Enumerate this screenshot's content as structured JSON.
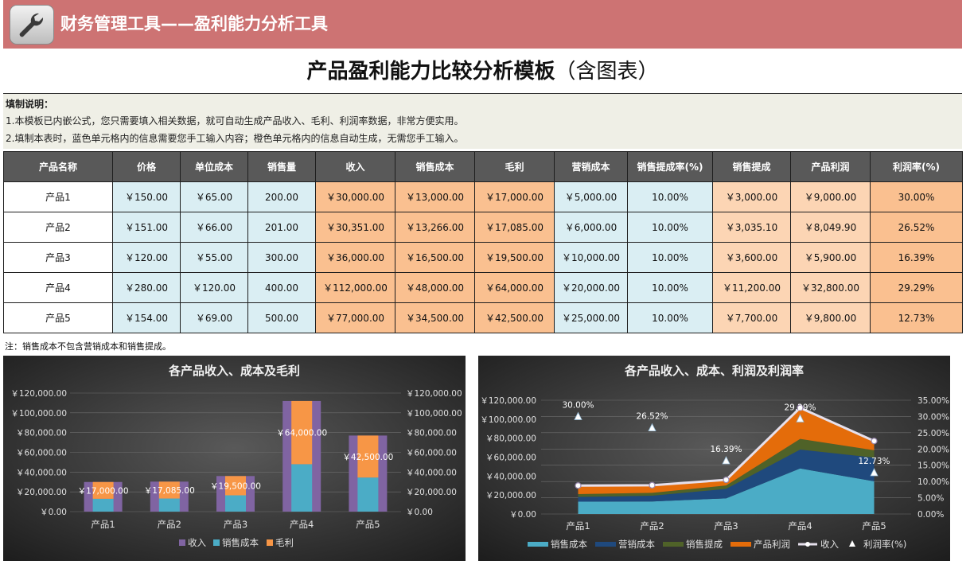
{
  "banner": {
    "title": "财务管理工具——盈利能力分析工具",
    "icon": "wrench-icon"
  },
  "page": {
    "title": "产品盈利能力比较分析模板",
    "subtitle": "（含图表）"
  },
  "notes": {
    "title": "填制说明：",
    "line1": "1.本模板已内嵌公式，您只需要填入相关数据，就可自动生成产品收入、毛利、利润率数据，非常方便实用。",
    "line2": "2.填制本表时，蓝色单元格内的信息需要您手工输入内容；橙色单元格内的信息自动生成，无需您手工输入。"
  },
  "table": {
    "headers": [
      "产品名称",
      "价格",
      "单位成本",
      "销售量",
      "收入",
      "销售成本",
      "毛利",
      "营销成本",
      "销售提成率(%)",
      "销售提成",
      "产品利润",
      "利润率(%)"
    ],
    "rows": [
      [
        "产品1",
        "￥150.00",
        "￥65.00",
        "200.00",
        "￥30,000.00",
        "￥13,000.00",
        "￥17,000.00",
        "￥5,000.00",
        "10.00%",
        "￥3,000.00",
        "￥9,000.00",
        "30.00%"
      ],
      [
        "产品2",
        "￥151.00",
        "￥66.00",
        "201.00",
        "￥30,351.00",
        "￥13,266.00",
        "￥17,085.00",
        "￥6,000.00",
        "10.00%",
        "￥3,035.10",
        "￥8,049.90",
        "26.52%"
      ],
      [
        "产品3",
        "￥120.00",
        "￥55.00",
        "300.00",
        "￥36,000.00",
        "￥16,500.00",
        "￥19,500.00",
        "￥10,000.00",
        "10.00%",
        "￥3,600.00",
        "￥5,900.00",
        "16.39%"
      ],
      [
        "产品4",
        "￥280.00",
        "￥120.00",
        "400.00",
        "￥112,000.00",
        "￥48,000.00",
        "￥64,000.00",
        "￥20,000.00",
        "10.00%",
        "￥11,200.00",
        "￥32,800.00",
        "29.29%"
      ],
      [
        "产品5",
        "￥154.00",
        "￥69.00",
        "500.00",
        "￥77,000.00",
        "￥34,500.00",
        "￥42,500.00",
        "￥25,000.00",
        "10.00%",
        "￥7,700.00",
        "￥9,800.00",
        "12.73%"
      ]
    ]
  },
  "footnote": "注：销售成本不包含营销成本和销售提成。",
  "colors": {
    "header_bg": "#595959",
    "input_cell": "#daeef3",
    "computed_cell": "#fac090",
    "computed_cell_light": "#fcd5b4",
    "banner": "#cd7373",
    "revenue": "#8064a2",
    "cost": "#4bacc6",
    "gross": "#f79646",
    "marketing": "#1f497d",
    "commission": "#4f6228",
    "profit": "#e46c0a"
  },
  "chart_data": [
    {
      "type": "bar",
      "title": "各产品收入、成本及毛利",
      "categories": [
        "产品1",
        "产品2",
        "产品3",
        "产品4",
        "产品5"
      ],
      "series": [
        {
          "name": "收入",
          "values": [
            30000,
            30351,
            36000,
            112000,
            77000
          ]
        },
        {
          "name": "销售成本",
          "values": [
            13000,
            13266,
            16500,
            48000,
            34500
          ]
        },
        {
          "name": "毛利",
          "values": [
            17000,
            17085,
            19500,
            64000,
            42500
          ]
        }
      ],
      "data_labels": [
        "￥17,000.00",
        "￥17,085.00",
        "￥19,500.00",
        "￥64,000.00",
        "￥42,500.00"
      ],
      "y_ticks": [
        "￥0.00",
        "￥20,000.00",
        "￥40,000.00",
        "￥60,000.00",
        "￥80,000.00",
        "￥100,000.00",
        "￥120,000.00"
      ],
      "y2_ticks": [
        "0.00",
        "20,000.00",
        "40,000.00",
        "60,000.00",
        "80,000.00",
        "100,000.00",
        "120,000.00"
      ],
      "y2_prefix": "￥",
      "ylim": [
        0,
        120000
      ],
      "legend": "bottom",
      "grid": true
    },
    {
      "type": "area",
      "title": "各产品收入、成本、利润及利润率",
      "categories": [
        "产品1",
        "产品2",
        "产品3",
        "产品4",
        "产品5"
      ],
      "series": [
        {
          "name": "销售成本",
          "values": [
            13000,
            13266,
            16500,
            48000,
            34500
          ]
        },
        {
          "name": "营销成本",
          "values": [
            5000,
            6000,
            10000,
            20000,
            25000
          ]
        },
        {
          "name": "销售提成",
          "values": [
            3000,
            3035.1,
            3600,
            11200,
            7700
          ]
        },
        {
          "name": "产品利润",
          "values": [
            9000,
            8049.9,
            5900,
            32800,
            9800
          ]
        }
      ],
      "line_series": {
        "name": "收入",
        "values": [
          30000,
          30351,
          36000,
          112000,
          77000
        ]
      },
      "marker_series": {
        "name": "利润率(%)",
        "values": [
          30.0,
          26.52,
          16.39,
          29.29,
          12.73
        ],
        "labels": [
          "30.00%",
          "26.52%",
          "16.39%",
          "29.29%",
          "12.73%"
        ]
      },
      "y_ticks": [
        "￥0.00",
        "￥20,000.00",
        "￥40,000.00",
        "￥60,000.00",
        "￥80,000.00",
        "￥100,000.00",
        "￥120,000.00"
      ],
      "y2_ticks": [
        "0.00%",
        "5.00%",
        "10.00%",
        "15.00%",
        "20.00%",
        "25.00%",
        "30.00%",
        "35.00%"
      ],
      "ylim": [
        0,
        120000
      ],
      "y2lim": [
        0,
        35
      ],
      "legend": "bottom",
      "grid": true
    }
  ]
}
